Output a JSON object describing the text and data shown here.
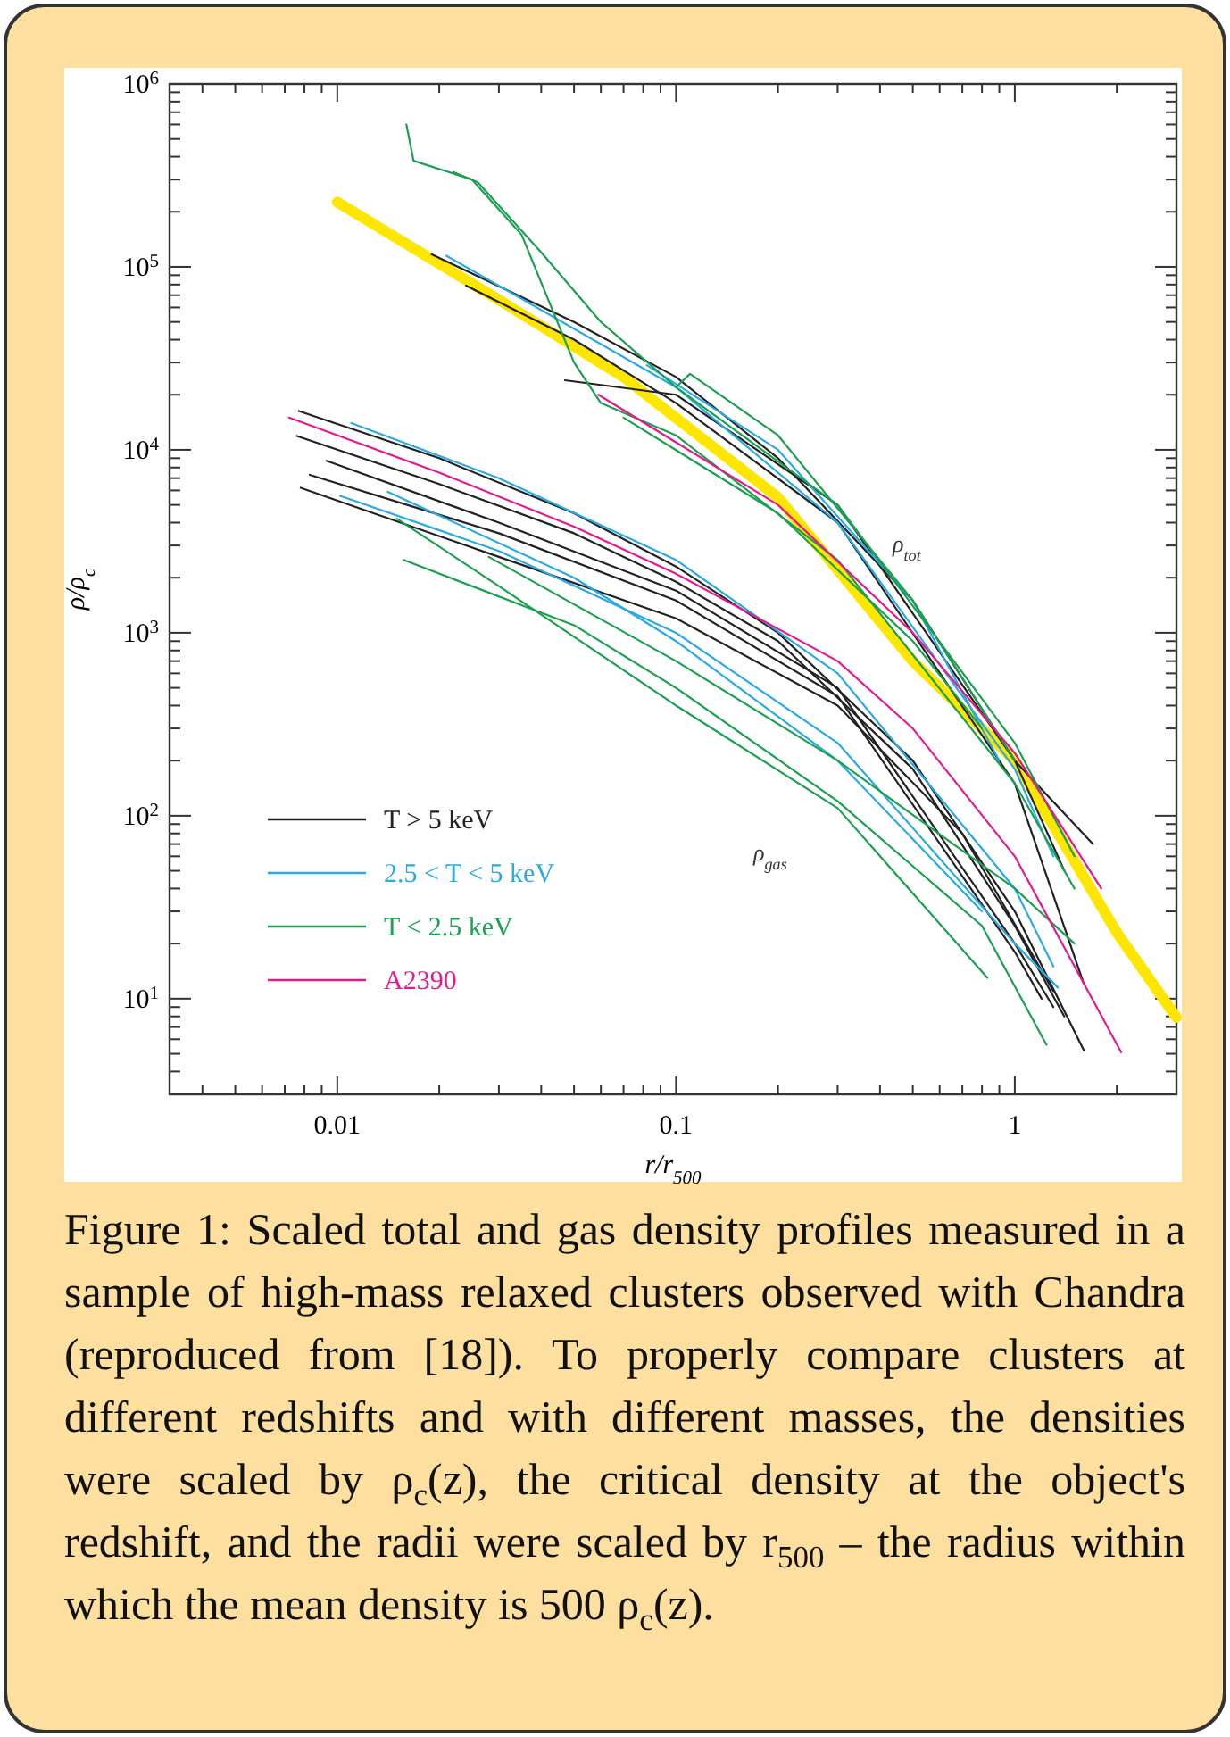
{
  "chart_data": {
    "type": "line",
    "xlabel": "r/r$_{500}$",
    "ylabel": "ρ/ρ$_{c}$",
    "log": "xy",
    "legend": "bottom left",
    "xlim": [
      0.0032,
      3
    ],
    "ylim": [
      3,
      1000000
    ],
    "xticks": [
      {
        "value": 0.004,
        "label": null
      },
      {
        "value": 0.005,
        "label": null
      },
      {
        "value": 0.006,
        "label": null
      },
      {
        "value": 0.007,
        "label": null
      },
      {
        "value": 0.008,
        "label": null
      },
      {
        "value": 0.009,
        "label": null
      },
      0.01,
      {
        "value": 0.02,
        "label": null
      },
      {
        "value": 0.03,
        "label": null
      },
      {
        "value": 0.04,
        "label": null
      },
      {
        "value": 0.05,
        "label": null
      },
      {
        "value": 0.06,
        "label": null
      },
      {
        "value": 0.07,
        "label": null
      },
      {
        "value": 0.08,
        "label": null
      },
      {
        "value": 0.09,
        "label": null
      },
      0.1,
      {
        "value": 0.2,
        "label": null
      },
      {
        "value": 0.3,
        "label": null
      },
      {
        "value": 0.4,
        "label": null
      },
      {
        "value": 0.5,
        "label": null
      },
      {
        "value": 0.6,
        "label": null
      },
      {
        "value": 0.7,
        "label": null
      },
      {
        "value": 0.8,
        "label": null
      },
      {
        "value": 0.9,
        "label": null
      },
      1,
      {
        "value": 2,
        "label": null
      },
      {
        "value": 3,
        "label": null
      }
    ],
    "yticks": [
      {
        "value": 4,
        "label": null
      },
      {
        "value": 5,
        "label": null
      },
      {
        "value": 6,
        "label": null
      },
      {
        "value": 7,
        "label": null
      },
      {
        "value": 8,
        "label": null
      },
      {
        "value": 9,
        "label": null
      },
      {
        "value": 10,
        "label": "10$^{1}$"
      },
      {
        "value": 20,
        "label": null
      },
      {
        "value": 30,
        "label": null
      },
      {
        "value": 40,
        "label": null
      },
      {
        "value": 50,
        "label": null
      },
      {
        "value": 60,
        "label": null
      },
      {
        "value": 70,
        "label": null
      },
      {
        "value": 80,
        "label": null
      },
      {
        "value": 90,
        "label": null
      },
      {
        "value": 100,
        "label": "10$^{2}$"
      },
      {
        "value": 200,
        "label": null
      },
      {
        "value": 300,
        "label": null
      },
      {
        "value": 400,
        "label": null
      },
      {
        "value": 500,
        "label": null
      },
      {
        "value": 600,
        "label": null
      },
      {
        "value": 700,
        "label": null
      },
      {
        "value": 800,
        "label": null
      },
      {
        "value": 900,
        "label": null
      },
      {
        "value": 1000,
        "label": "10$^{3}$"
      },
      {
        "value": 2000,
        "label": null
      },
      {
        "value": 3000,
        "label": null
      },
      {
        "value": 4000,
        "label": null
      },
      {
        "value": 5000,
        "label": null
      },
      {
        "value": 6000,
        "label": null
      },
      {
        "value": 7000,
        "label": null
      },
      {
        "value": 8000,
        "label": null
      },
      {
        "value": 9000,
        "label": null
      },
      {
        "value": 10000,
        "label": "10$^{4}$"
      },
      {
        "value": 20000,
        "label": null
      },
      {
        "value": 30000,
        "label": null
      },
      {
        "value": 40000,
        "label": null
      },
      {
        "value": 50000,
        "label": null
      },
      {
        "value": 60000,
        "label": null
      },
      {
        "value": 70000,
        "label": null
      },
      {
        "value": 80000,
        "label": null
      },
      {
        "value": 90000,
        "label": null
      },
      {
        "value": 100000,
        "label": "10$^{5}$"
      },
      {
        "value": 200000,
        "label": null
      },
      {
        "value": 300000,
        "label": null
      },
      {
        "value": 400000,
        "label": null
      },
      {
        "value": 500000,
        "label": null
      },
      {
        "value": 600000,
        "label": null
      },
      {
        "value": 700000,
        "label": null
      },
      {
        "value": 800000,
        "label": null
      },
      {
        "value": 900000,
        "label": null
      },
      {
        "value": 1000000,
        "label": "10$^{6}$"
      }
    ],
    "series": [
      {
        "color": "#ffe600",
        "x": [
          0.01,
          0.03,
          0.07,
          0.2,
          0.5,
          1,
          2,
          3
        ],
        "values": [
          226000,
          66000,
          25000,
          5500,
          700,
          200,
          23,
          7.9
        ]
      },
      {
        "name": "T > 5 keV",
        "color": "#222222",
        "x": [
          0.0077,
          0.02,
          0.05,
          0.1,
          0.2,
          0.5,
          1,
          1.6
        ],
        "values": [
          16300,
          9000,
          4500,
          2300,
          1000,
          200,
          30,
          5.2
        ]
      },
      {
        "color": "#222222",
        "x": [
          0.0076,
          0.02,
          0.05,
          0.1,
          0.2,
          0.5,
          1,
          1.4
        ],
        "values": [
          11900,
          6500,
          3500,
          1900,
          900,
          180,
          25,
          8
        ]
      },
      {
        "color": "#222222",
        "x": [
          0.0093,
          0.03,
          0.1,
          0.3,
          1,
          1.3
        ],
        "values": [
          8700,
          4000,
          1700,
          500,
          20,
          9
        ]
      },
      {
        "color": "#222222",
        "x": [
          0.0083,
          0.03,
          0.1,
          0.3,
          1,
          1.2
        ],
        "values": [
          7300,
          3500,
          1500,
          450,
          18,
          10
        ]
      },
      {
        "color": "#222222",
        "x": [
          0.0078,
          0.03,
          0.1,
          0.3,
          0.7,
          1.3
        ],
        "values": [
          6200,
          2600,
          1200,
          400,
          80,
          11
        ]
      },
      {
        "color": "#222222",
        "x": [
          0.019,
          0.05,
          0.1,
          0.2,
          0.5,
          1,
          1.7
        ],
        "values": [
          117000,
          50000,
          25000,
          9000,
          1500,
          200,
          70
        ]
      },
      {
        "color": "#222222",
        "x": [
          0.024,
          0.05,
          0.1,
          0.3,
          1,
          1.6
        ],
        "values": [
          79000,
          40000,
          18000,
          4000,
          150,
          12
        ]
      },
      {
        "color": "#222222",
        "x": [
          0.047,
          0.1,
          0.3,
          1,
          1.4
        ],
        "values": [
          24000,
          20000,
          5000,
          200,
          50
        ]
      },
      {
        "name": "2.5 < T < 5 keV",
        "color": "#29abe2",
        "x": [
          0.011,
          0.03,
          0.1,
          0.3,
          1,
          1.3
        ],
        "values": [
          14000,
          7000,
          2500,
          600,
          40,
          15
        ]
      },
      {
        "color": "#29abe2",
        "x": [
          0.0102,
          0.03,
          0.1,
          0.3,
          1,
          1.34
        ],
        "values": [
          5600,
          2800,
          1000,
          250,
          20,
          11.5
        ]
      },
      {
        "color": "#29abe2",
        "x": [
          0.0141,
          0.05,
          0.1,
          0.3,
          0.8
        ],
        "values": [
          5900,
          2000,
          900,
          200,
          30
        ]
      },
      {
        "color": "#29abe2",
        "x": [
          0.021,
          0.1,
          0.3,
          1,
          1.3
        ],
        "values": [
          115000,
          22000,
          4000,
          180,
          60
        ]
      },
      {
        "color": "#29abe2",
        "x": [
          0.082,
          0.2,
          0.5,
          0.9
        ],
        "values": [
          29000,
          10000,
          1500,
          200
        ]
      },
      {
        "name": "T < 2.5 keV",
        "color": "#1aa050",
        "x": [
          0.0157,
          0.05,
          0.1,
          0.3,
          0.8,
          1.24
        ],
        "values": [
          2500,
          1100,
          500,
          120,
          25,
          5.6
        ]
      },
      {
        "color": "#1aa050",
        "x": [
          0.015,
          0.03,
          0.1,
          0.3,
          0.83
        ],
        "values": [
          4200,
          1800,
          400,
          110,
          13
        ]
      },
      {
        "color": "#1aa050",
        "x": [
          0.028,
          0.1,
          0.3,
          1,
          1.5
        ],
        "values": [
          2600,
          700,
          200,
          40,
          20
        ]
      },
      {
        "color": "#1aa050",
        "x": [
          0.016,
          0.0168,
          0.025,
          0.035,
          0.05,
          0.06,
          0.1,
          0.3,
          1,
          1.5
        ],
        "values": [
          600000,
          380000,
          300000,
          150000,
          30000,
          18000,
          12000,
          2500,
          150,
          40
        ]
      },
      {
        "color": "#1aa050",
        "x": [
          0.022,
          0.026,
          0.04,
          0.06,
          0.1,
          0.3,
          1,
          1.5
        ],
        "values": [
          330000,
          290000,
          120000,
          50000,
          22000,
          5000,
          250,
          60
        ]
      },
      {
        "color": "#1aa050",
        "x": [
          0.1,
          0.11,
          0.2,
          0.5,
          1
        ],
        "values": [
          22000,
          26000,
          12000,
          1500,
          200
        ]
      },
      {
        "color": "#1aa050",
        "x": [
          0.07,
          0.2,
          0.5,
          0.8
        ],
        "values": [
          15000,
          4500,
          900,
          300
        ]
      },
      {
        "name": "A2390",
        "color": "#e6198c",
        "x": [
          0.0072,
          0.02,
          0.05,
          0.1,
          0.3,
          0.5,
          1,
          2.06
        ],
        "values": [
          15000,
          7500,
          3800,
          2100,
          700,
          300,
          60,
          5.1
        ]
      },
      {
        "color": "#e6198c",
        "x": [
          0.059,
          0.2,
          0.5,
          1,
          1.8
        ],
        "values": [
          20000,
          5000,
          1000,
          220,
          40
        ]
      }
    ],
    "annotations": [
      "ρ$_{tot}$",
      "ρ$_{gas}$",
      "Figure 1: Scaled total and gas density profiles measured in a sample of high-mass relaxed clusters observed with Chandra (reproduced from [18]). To properly compare clusters at different redshifts and with different masses, the densities were scaled by ρ$_{c}$(z), the critical density at the object's redshift, and the radii were scaled by r$_{500}$ – the radius within which the mean density is 500 ρ$_{c}$(z)."
    ]
  }
}
